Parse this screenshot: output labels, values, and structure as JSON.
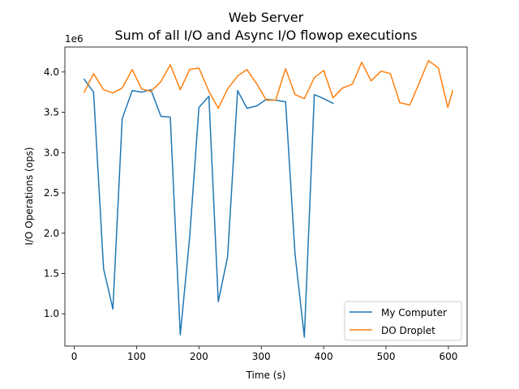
{
  "chart_data": {
    "type": "line",
    "title": "Web Server",
    "subtitle": "Sum of all I/O and Async I/O flowop executions",
    "xlabel": "Time (s)",
    "ylabel": "I/O Operations (ops)",
    "y_offset_label": "1e6",
    "xlim": [
      -15,
      630
    ],
    "ylim": [
      600000,
      4310000
    ],
    "x_ticks": [
      0,
      100,
      200,
      300,
      400,
      500,
      600
    ],
    "x_tick_labels": [
      "0",
      "100",
      "200",
      "300",
      "400",
      "500",
      "600"
    ],
    "y_ticks": [
      1000000,
      1500000,
      2000000,
      2500000,
      3000000,
      3500000,
      4000000
    ],
    "y_tick_labels": [
      "1.0",
      "1.5",
      "2.0",
      "2.5",
      "3.0",
      "3.5",
      "4.0"
    ],
    "grid": false,
    "legend_position": "lower-right",
    "series": [
      {
        "name": "My Computer",
        "color": "#1f77b4",
        "x": [
          16,
          31,
          47,
          62,
          77,
          93,
          108,
          123,
          139,
          154,
          170,
          185,
          200,
          216,
          231,
          246,
          262,
          277,
          293,
          308,
          323,
          339,
          354,
          369,
          385,
          400,
          415
        ],
        "y": [
          3910000,
          3750000,
          1560000,
          1060000,
          3420000,
          3770000,
          3750000,
          3780000,
          3450000,
          3440000,
          740000,
          1940000,
          3560000,
          3700000,
          1150000,
          1710000,
          3770000,
          3550000,
          3580000,
          3660000,
          3650000,
          3630000,
          1740000,
          710000,
          3720000,
          3670000,
          3610000
        ]
      },
      {
        "name": "DO Droplet",
        "color": "#ff7f0e",
        "x": [
          16,
          31,
          47,
          62,
          77,
          93,
          108,
          123,
          139,
          154,
          170,
          185,
          200,
          216,
          231,
          246,
          262,
          277,
          293,
          308,
          323,
          339,
          354,
          369,
          385,
          400,
          415,
          430,
          446,
          461,
          476,
          492,
          507,
          522,
          538,
          553,
          568,
          584,
          599,
          607
        ],
        "y": [
          3750000,
          3980000,
          3780000,
          3740000,
          3800000,
          4030000,
          3790000,
          3760000,
          3880000,
          4090000,
          3780000,
          4030000,
          4050000,
          3760000,
          3550000,
          3790000,
          3950000,
          4030000,
          3850000,
          3650000,
          3650000,
          4040000,
          3720000,
          3670000,
          3930000,
          4020000,
          3680000,
          3800000,
          3850000,
          4120000,
          3890000,
          4010000,
          3980000,
          3620000,
          3590000,
          3860000,
          4140000,
          4050000,
          3560000,
          3770000
        ]
      }
    ]
  }
}
